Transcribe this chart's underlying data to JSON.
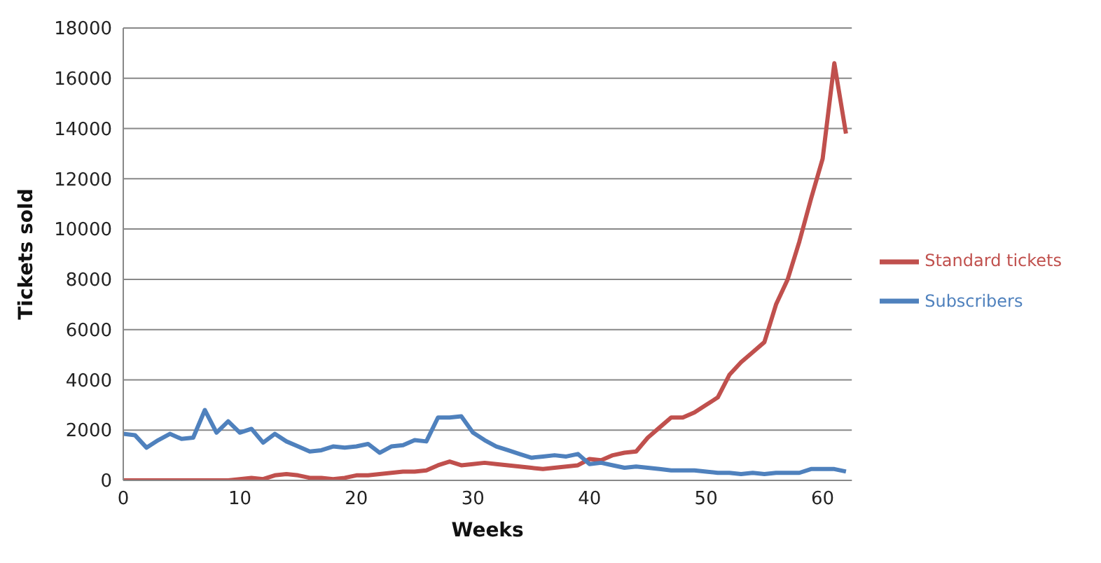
{
  "chart_data": {
    "type": "line",
    "xlabel": "Weeks",
    "ylabel": "Tickets sold",
    "x": [
      0,
      1,
      2,
      3,
      4,
      5,
      6,
      7,
      8,
      9,
      10,
      11,
      12,
      13,
      14,
      15,
      16,
      17,
      18,
      19,
      20,
      21,
      22,
      23,
      24,
      25,
      26,
      27,
      28,
      29,
      30,
      31,
      32,
      33,
      34,
      35,
      36,
      37,
      38,
      39,
      40,
      41,
      42,
      43,
      44,
      45,
      46,
      47,
      48,
      49,
      50,
      51,
      52,
      53,
      54,
      55,
      56,
      57,
      58,
      59,
      60,
      61,
      62
    ],
    "series": [
      {
        "name": "Standard tickets",
        "color": "#c0504d",
        "values": [
          0,
          0,
          0,
          0,
          0,
          0,
          0,
          0,
          0,
          0,
          50,
          100,
          50,
          200,
          250,
          200,
          100,
          100,
          50,
          100,
          200,
          200,
          250,
          300,
          350,
          350,
          400,
          600,
          750,
          600,
          650,
          700,
          650,
          600,
          550,
          500,
          450,
          500,
          550,
          600,
          850,
          800,
          1000,
          1100,
          1150,
          1700,
          2100,
          2500,
          2500,
          2700,
          3000,
          3300,
          4200,
          4700,
          5100,
          5500,
          7000,
          8000,
          9500,
          11200,
          12800,
          16600,
          13800
        ]
      },
      {
        "name": "Subscribers",
        "color": "#4f81bd",
        "values": [
          1850,
          1800,
          1300,
          1600,
          1850,
          1650,
          1700,
          2800,
          1900,
          2350,
          1900,
          2050,
          1500,
          1850,
          1550,
          1350,
          1150,
          1200,
          1350,
          1300,
          1350,
          1450,
          1100,
          1350,
          1400,
          1600,
          1550,
          2500,
          2500,
          2550,
          1900,
          1600,
          1350,
          1200,
          1050,
          900,
          950,
          1000,
          950,
          1050,
          650,
          700,
          600,
          500,
          550,
          500,
          450,
          400,
          400,
          400,
          350,
          300,
          300,
          250,
          300,
          250,
          300,
          300,
          300,
          450,
          450,
          450,
          350
        ]
      }
    ],
    "xlim": [
      0,
      62.5
    ],
    "xticks": [
      0,
      10,
      20,
      30,
      40,
      50,
      60
    ],
    "ylim": [
      0,
      18000
    ],
    "yticks": [
      0,
      2000,
      4000,
      6000,
      8000,
      10000,
      12000,
      14000,
      16000,
      18000
    ],
    "grid": "y",
    "legend": "right",
    "marker": "none",
    "line_style": "solid"
  }
}
